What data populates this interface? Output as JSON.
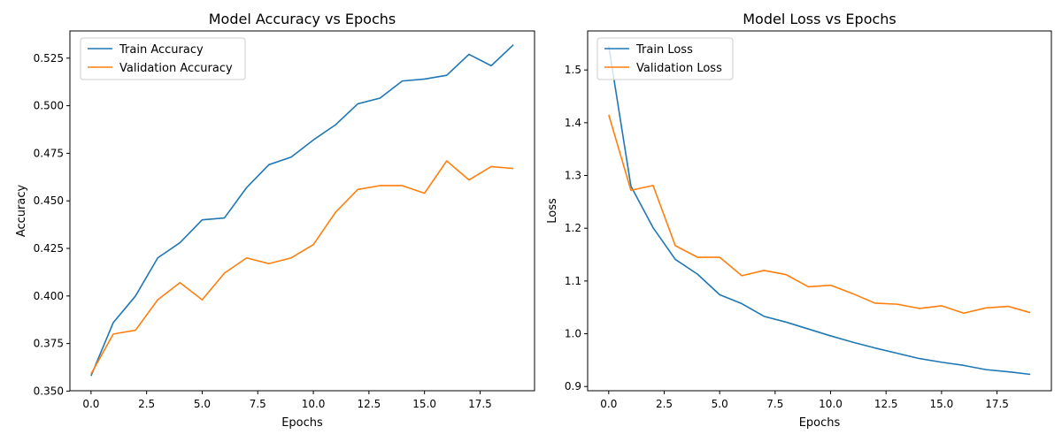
{
  "chart_data": [
    {
      "type": "line",
      "title": "Model Accuracy vs Epochs",
      "xlabel": "Epochs",
      "ylabel": "Accuracy",
      "xlim": [
        -0.95,
        19.95
      ],
      "ylim": [
        0.3502,
        0.5393
      ],
      "xticks": [
        0.0,
        2.5,
        5.0,
        7.5,
        10.0,
        12.5,
        15.0,
        17.5
      ],
      "xtick_labels": [
        "0.0",
        "2.5",
        "5.0",
        "7.5",
        "10.0",
        "12.5",
        "15.0",
        "17.5"
      ],
      "yticks": [
        0.35,
        0.375,
        0.4,
        0.425,
        0.45,
        0.475,
        0.5,
        0.525
      ],
      "ytick_labels": [
        "0.350",
        "0.375",
        "0.400",
        "0.425",
        "0.450",
        "0.475",
        "0.500",
        "0.525"
      ],
      "legend_position": "upper left",
      "grid": false,
      "x": [
        0,
        1,
        2,
        3,
        4,
        5,
        6,
        7,
        8,
        9,
        10,
        11,
        12,
        13,
        14,
        15,
        16,
        17,
        18,
        19
      ],
      "series": [
        {
          "name": "Train Accuracy",
          "color": "#1f77b4",
          "values": [
            0.358,
            0.386,
            0.4,
            0.42,
            0.428,
            0.44,
            0.441,
            0.457,
            0.469,
            0.473,
            0.482,
            0.49,
            0.501,
            0.504,
            0.513,
            0.514,
            0.516,
            0.527,
            0.521,
            0.532
          ]
        },
        {
          "name": "Validation Accuracy",
          "color": "#ff7f0e",
          "values": [
            0.359,
            0.38,
            0.382,
            0.398,
            0.407,
            0.398,
            0.412,
            0.42,
            0.417,
            0.42,
            0.427,
            0.444,
            0.456,
            0.458,
            0.458,
            0.454,
            0.471,
            0.461,
            0.468,
            0.467
          ]
        }
      ]
    },
    {
      "type": "line",
      "title": "Model Loss vs Epochs",
      "xlabel": "Epochs",
      "ylabel": "Loss",
      "xlim": [
        -0.95,
        19.95
      ],
      "ylim": [
        0.892,
        1.574
      ],
      "xticks": [
        0.0,
        2.5,
        5.0,
        7.5,
        10.0,
        12.5,
        15.0,
        17.5
      ],
      "xtick_labels": [
        "0.0",
        "2.5",
        "5.0",
        "7.5",
        "10.0",
        "12.5",
        "15.0",
        "17.5"
      ],
      "yticks": [
        0.9,
        1.0,
        1.1,
        1.2,
        1.3,
        1.4,
        1.5
      ],
      "ytick_labels": [
        "0.9",
        "1.0",
        "1.1",
        "1.2",
        "1.3",
        "1.4",
        "1.5"
      ],
      "legend_position": "upper left",
      "grid": false,
      "x": [
        0,
        1,
        2,
        3,
        4,
        5,
        6,
        7,
        8,
        9,
        10,
        11,
        12,
        13,
        14,
        15,
        16,
        17,
        18,
        19
      ],
      "series": [
        {
          "name": "Train Loss",
          "color": "#1f77b4",
          "values": [
            1.545,
            1.28,
            1.201,
            1.141,
            1.113,
            1.074,
            1.057,
            1.033,
            1.022,
            1.009,
            0.996,
            0.984,
            0.973,
            0.963,
            0.953,
            0.946,
            0.94,
            0.932,
            0.928,
            0.923
          ]
        },
        {
          "name": "Validation Loss",
          "color": "#ff7f0e",
          "values": [
            1.415,
            1.272,
            1.281,
            1.167,
            1.145,
            1.145,
            1.11,
            1.12,
            1.112,
            1.089,
            1.092,
            1.076,
            1.058,
            1.056,
            1.048,
            1.053,
            1.039,
            1.049,
            1.052,
            1.04
          ]
        }
      ]
    }
  ]
}
